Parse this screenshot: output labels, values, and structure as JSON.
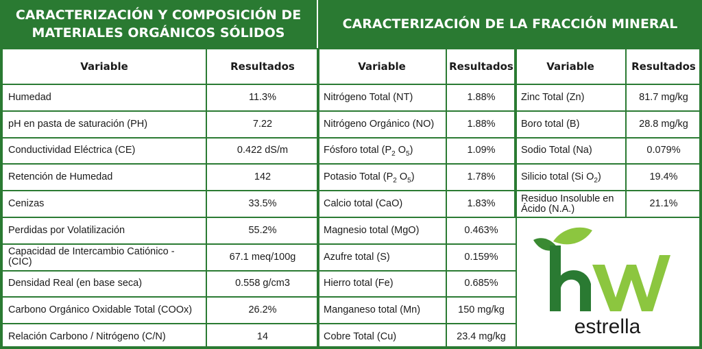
{
  "headers": {
    "left": "CARACTERIZACIÓN Y COMPOSICIÓN DE MATERIALES ORGÁNICOS SÓLIDOS",
    "right": "CARACTERIZACIÓN DE LA FRACCIÓN MINERAL"
  },
  "columns": {
    "variable": "Variable",
    "result": "Resultados"
  },
  "organic_rows": [
    {
      "variable": "Humedad",
      "result": "11.3%"
    },
    {
      "variable": "pH en pasta de saturación (PH)",
      "result": "7.22"
    },
    {
      "variable": "Conductividad Eléctrica (CE)",
      "result": "0.422 dS/m"
    },
    {
      "variable": "Retención de Humedad",
      "result": "142"
    },
    {
      "variable": "Cenizas",
      "result": "33.5%"
    },
    {
      "variable": "Perdidas por Volatilización",
      "result": "55.2%"
    },
    {
      "variable": "Capacidad de Intercambio Catiónico - (CIC)",
      "result": "67.1 meq/100g"
    },
    {
      "variable": "Densidad Real (en base seca)",
      "result": "0.558 g/cm3"
    },
    {
      "variable": "Carbono Orgánico Oxidable Total (COOx)",
      "result": "26.2%"
    },
    {
      "variable": "Relación Carbono / Nitrógeno (C/N)",
      "result": "14"
    }
  ],
  "mineral_rows_a": [
    {
      "variable": "Nitrógeno Total (NT)",
      "result": "1.88%"
    },
    {
      "variable": "Nitrógeno Orgánico (NO)",
      "result": "1.88%"
    },
    {
      "variable": "Fósforo total (P",
      "sub1": "2",
      "mid": " O",
      "sub2": "5",
      "end": ")",
      "result": "1.09%"
    },
    {
      "variable": "Potasio Total (P",
      "sub1": "2",
      "mid": " O",
      "sub2": "5",
      "end": ")",
      "result": "1.78%"
    },
    {
      "variable": "Calcio total (CaO)",
      "result": "1.83%"
    },
    {
      "variable": "Magnesio total (MgO)",
      "result": "0.463%"
    },
    {
      "variable": "Azufre total (S)",
      "result": "0.159%"
    },
    {
      "variable": "Hierro total (Fe)",
      "result": "0.685%"
    },
    {
      "variable": "Manganeso total (Mn)",
      "result": "150 mg/kg"
    },
    {
      "variable": "Cobre Total (Cu)",
      "result": "23.4 mg/kg"
    }
  ],
  "mineral_rows_b": [
    {
      "variable": "Zinc Total (Zn)",
      "result": "81.7 mg/kg"
    },
    {
      "variable": "Boro total (B)",
      "result": "28.8 mg/kg"
    },
    {
      "variable": "Sodio Total (Na)",
      "result": "0.079%"
    },
    {
      "variable": "Silicio total (Si O",
      "sub1": "2",
      "end": ")",
      "result": "19.4%"
    },
    {
      "variable": "Residuo Insoluble en Ácido (N.A.)",
      "result": "21.1%"
    }
  ],
  "logo": {
    "mark": "hw",
    "wordmark": "estrella"
  },
  "colors": {
    "brand_green": "#2a7a32",
    "light_green": "#8cc63f",
    "leaf_green": "#5cb531"
  }
}
